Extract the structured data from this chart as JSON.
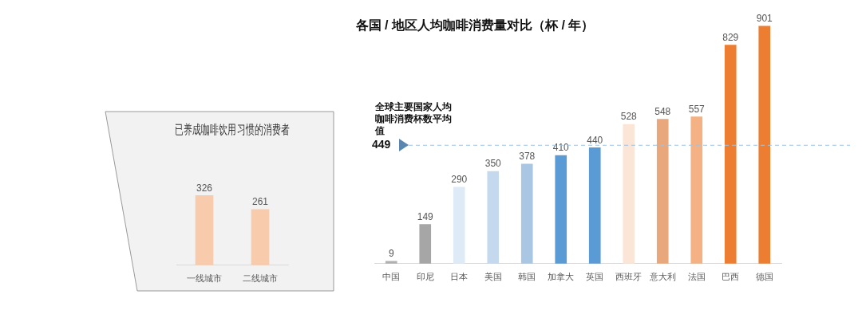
{
  "chart_data": [
    {
      "type": "bar",
      "title": "已养成咖啡饮用习惯的消费者",
      "categories": [
        "一线城市",
        "二线城市"
      ],
      "values": [
        326,
        261
      ],
      "color": "#f8cbad",
      "data_labels": true
    },
    {
      "type": "bar",
      "title": "各国 / 地区人均咖啡消费量对比（杯 / 年）",
      "categories": [
        "中国",
        "印尼",
        "日本",
        "美国",
        "韩国",
        "加拿大",
        "英国",
        "西班牙",
        "意大利",
        "法国",
        "巴西",
        "德国"
      ],
      "values": [
        9,
        149,
        290,
        350,
        378,
        410,
        440,
        528,
        548,
        557,
        829,
        901
      ],
      "colors": [
        "#b0b0b0",
        "#a6a6a6",
        "#deebf7",
        "#c5d9ee",
        "#a9c6e3",
        "#5b9bd5",
        "#5b9bd5",
        "#fbe5d6",
        "#e8a87c",
        "#f4b183",
        "#ed7d31",
        "#ed7d31"
      ],
      "data_labels": true,
      "annotations": [
        "全球主要国家人均咖啡消费杯数平均值"
      ],
      "ref_lines": [
        {
          "axis": "y",
          "value": 449,
          "label": "449",
          "color": "#9dc3e6",
          "line_style": "dashed"
        }
      ]
    }
  ]
}
